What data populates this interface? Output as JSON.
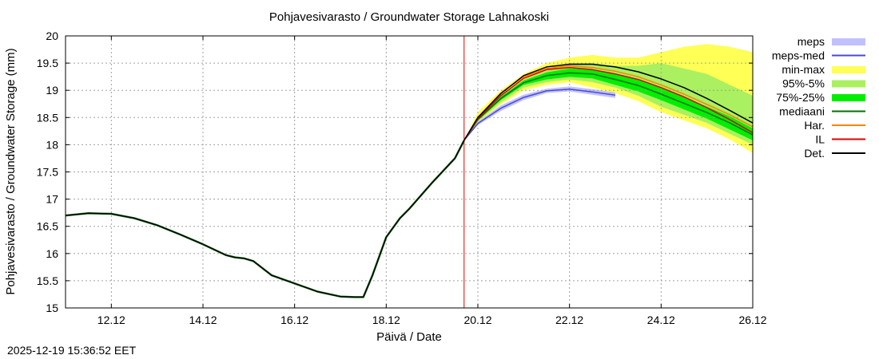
{
  "chart_data": {
    "type": "line",
    "title": "Pohjavesivarasto / Groundwater Storage   Lahnakoski",
    "xlabel": "Päivä / Date",
    "ylabel": "Pohjavesivarasto / Groundwater Storage (mm)",
    "x_unit": "days since 11.12",
    "xlim": [
      0,
      15
    ],
    "ylim": [
      15,
      20
    ],
    "x_ticks": [
      {
        "value": 1,
        "label": "12.12"
      },
      {
        "value": 3,
        "label": "14.12"
      },
      {
        "value": 5,
        "label": "16.12"
      },
      {
        "value": 7,
        "label": "18.12"
      },
      {
        "value": 9,
        "label": "20.12"
      },
      {
        "value": 11,
        "label": "22.12"
      },
      {
        "value": 13,
        "label": "24.12"
      },
      {
        "value": 15,
        "label": "26.12"
      }
    ],
    "y_ticks": [
      {
        "value": 15,
        "label": "15"
      },
      {
        "value": 15.5,
        "label": "15.5"
      },
      {
        "value": 16,
        "label": "16"
      },
      {
        "value": 16.5,
        "label": "16.5"
      },
      {
        "value": 17,
        "label": "17"
      },
      {
        "value": 17.5,
        "label": "17.5"
      },
      {
        "value": 18,
        "label": "18"
      },
      {
        "value": 18.5,
        "label": "18.5"
      },
      {
        "value": 19,
        "label": "19"
      },
      {
        "value": 19.5,
        "label": "19.5"
      },
      {
        "value": 20,
        "label": "20"
      }
    ],
    "grid": true,
    "forecast_start": 8.7,
    "legend_position": "outside-right",
    "legend": [
      {
        "key": "meps",
        "label": "meps",
        "color": "#c0c0ff",
        "kind": "band"
      },
      {
        "key": "meps_med",
        "label": "meps-med",
        "color": "#4a4ad0",
        "kind": "line"
      },
      {
        "key": "minmax",
        "label": "min-max",
        "color": "#ffff55",
        "kind": "band"
      },
      {
        "key": "p95_5",
        "label": "95%-5%",
        "color": "#aaf060",
        "kind": "band"
      },
      {
        "key": "p75_25",
        "label": "75%-25%",
        "color": "#00ee00",
        "kind": "band"
      },
      {
        "key": "mediaani",
        "label": "mediaani",
        "color": "#007000",
        "kind": "line"
      },
      {
        "key": "har",
        "label": "Har.",
        "color": "#ff8000",
        "kind": "line"
      },
      {
        "key": "il",
        "label": "IL",
        "color": "#e00000",
        "kind": "line"
      },
      {
        "key": "det",
        "label": "Det.",
        "color": "#000000",
        "kind": "line"
      }
    ],
    "observed": {
      "name": "Det. (history)",
      "x": [
        0,
        0.5,
        1,
        1.5,
        2,
        2.5,
        3,
        3.5,
        3.7,
        3.9,
        4.1,
        4.5,
        5,
        5.5,
        6,
        6.3,
        6.5,
        6.7,
        7,
        7.3,
        7.5,
        8,
        8.5,
        8.7
      ],
      "y": [
        16.7,
        16.74,
        16.73,
        16.65,
        16.52,
        16.35,
        16.17,
        15.97,
        15.93,
        15.91,
        15.86,
        15.6,
        15.45,
        15.3,
        15.21,
        15.2,
        15.2,
        15.6,
        16.3,
        16.65,
        16.82,
        17.3,
        17.75,
        18.08
      ]
    },
    "bands": {
      "x": [
        8.7,
        9,
        9.5,
        10,
        10.5,
        11,
        11.5,
        12,
        12.5,
        13,
        13.5,
        14,
        14.5,
        15
      ],
      "minmax_low": [
        18.08,
        18.4,
        18.75,
        19.0,
        19.1,
        19.15,
        19.05,
        18.95,
        18.8,
        18.6,
        18.45,
        18.3,
        18.1,
        17.85
      ],
      "minmax_high": [
        18.08,
        18.6,
        19.0,
        19.3,
        19.5,
        19.6,
        19.65,
        19.6,
        19.6,
        19.7,
        19.8,
        19.85,
        19.8,
        19.7
      ],
      "p95_low": [
        18.08,
        18.42,
        18.78,
        19.05,
        19.15,
        19.2,
        19.15,
        19.05,
        18.9,
        18.7,
        18.55,
        18.4,
        18.2,
        18.0
      ],
      "p95_high": [
        18.08,
        18.52,
        18.93,
        19.2,
        19.4,
        19.5,
        19.5,
        19.45,
        19.45,
        19.5,
        19.4,
        19.3,
        19.1,
        18.9
      ],
      "p75_low": [
        18.08,
        18.45,
        18.82,
        19.1,
        19.2,
        19.25,
        19.22,
        19.1,
        18.98,
        18.82,
        18.65,
        18.48,
        18.28,
        18.08
      ],
      "p75_high": [
        18.08,
        18.48,
        18.88,
        19.18,
        19.33,
        19.4,
        19.38,
        19.3,
        19.2,
        19.05,
        18.88,
        18.7,
        18.52,
        18.3
      ],
      "meps_x": [
        8.7,
        9,
        9.5,
        10,
        10.5,
        11,
        11.5,
        12
      ],
      "meps_low": [
        18.08,
        18.36,
        18.62,
        18.82,
        18.95,
        18.98,
        18.92,
        18.86
      ],
      "meps_high": [
        18.08,
        18.42,
        18.72,
        18.92,
        19.03,
        19.07,
        19.02,
        18.96
      ]
    },
    "series": [
      {
        "key": "meps_med",
        "name": "meps-med",
        "x": [
          8.7,
          9,
          9.5,
          10,
          10.5,
          11,
          11.5,
          12
        ],
        "y": [
          18.08,
          18.39,
          18.67,
          18.87,
          18.99,
          19.02,
          18.97,
          18.91
        ]
      },
      {
        "key": "mediaani",
        "name": "mediaani",
        "x": [
          8.7,
          9,
          9.5,
          10,
          10.5,
          11,
          11.5,
          12,
          12.5,
          13,
          13.5,
          14,
          14.5,
          15
        ],
        "y": [
          18.08,
          18.46,
          18.85,
          19.14,
          19.27,
          19.32,
          19.3,
          19.2,
          19.09,
          18.93,
          18.76,
          18.59,
          18.4,
          18.18
        ]
      },
      {
        "key": "har",
        "name": "Har.",
        "x": [
          8.7,
          9,
          9.5,
          10,
          10.5,
          11,
          11.5,
          12,
          12.5,
          13,
          13.5,
          14,
          14.5,
          15
        ],
        "y": [
          18.08,
          18.5,
          18.95,
          19.25,
          19.4,
          19.45,
          19.42,
          19.35,
          19.25,
          19.1,
          18.93,
          18.74,
          18.55,
          18.33
        ]
      },
      {
        "key": "il",
        "name": "IL",
        "x": [
          8.7,
          9,
          9.5,
          10,
          10.5,
          11,
          11.5,
          12,
          12.5,
          13,
          13.5,
          14,
          14.5,
          15
        ],
        "y": [
          18.08,
          18.48,
          18.9,
          19.22,
          19.38,
          19.42,
          19.38,
          19.3,
          19.2,
          19.05,
          18.88,
          18.68,
          18.46,
          18.22
        ]
      },
      {
        "key": "det",
        "name": "Det.",
        "x": [
          8.7,
          9,
          9.5,
          10,
          10.5,
          11,
          11.5,
          12,
          12.5,
          13,
          13.5,
          14,
          14.5,
          15
        ],
        "y": [
          18.08,
          18.5,
          18.94,
          19.27,
          19.43,
          19.48,
          19.48,
          19.43,
          19.34,
          19.21,
          19.05,
          18.85,
          18.63,
          18.4
        ]
      }
    ]
  },
  "timestamp": "2025-12-19 15:36:52 EET"
}
